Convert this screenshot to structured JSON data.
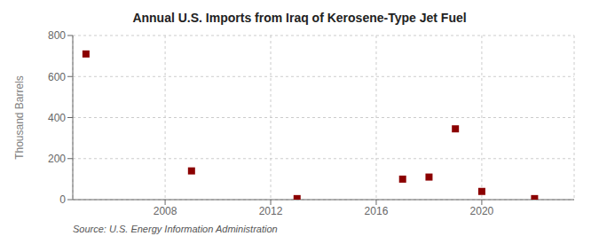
{
  "chart_data": {
    "type": "scatter",
    "title": "Annual U.S. Imports from Iraq of Kerosene-Type Jet Fuel",
    "y_label": "Thousand Barrels",
    "annotations": [
      "Source: U.S. Energy Information Administration"
    ],
    "x": [
      2005,
      2009,
      2013,
      2017,
      2018,
      2019,
      2020,
      2022
    ],
    "values": [
      710,
      140,
      5,
      100,
      110,
      345,
      40,
      5
    ],
    "color": "#8b0000",
    "marker": "square",
    "xlim": [
      2004.5,
      2023.5
    ],
    "xticks": [
      2008,
      2012,
      2016,
      2020
    ],
    "ylim": [
      0,
      800
    ],
    "yticks": [
      0,
      200,
      400,
      600,
      800
    ],
    "grid": true
  }
}
